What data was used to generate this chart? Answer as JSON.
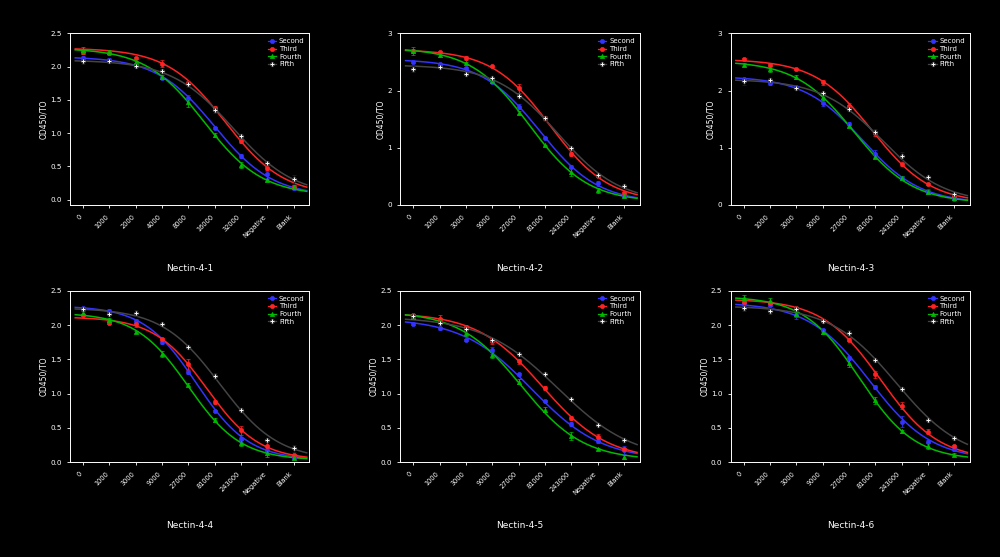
{
  "background": "#000000",
  "text_color": "#ffffff",
  "series": [
    {
      "name": "Second",
      "color": "#3333ff",
      "marker": "o",
      "mfc": "#3333ff"
    },
    {
      "name": "Third",
      "color": "#ff2222",
      "marker": "o",
      "mfc": "#ff2222"
    },
    {
      "name": "Fourth",
      "color": "#00bb00",
      "marker": "^",
      "mfc": "#00bb00"
    },
    {
      "name": "Fifth",
      "color": "#222222",
      "marker": "P",
      "mfc": "#ffffff",
      "lc": "#444444"
    }
  ],
  "subplots": [
    {
      "title": "Nectin-4-1",
      "ylabel": "OD450/TO",
      "ylim": [
        -0.08,
        2.5
      ],
      "yticks": [
        0.0,
        0.5,
        1.0,
        1.5,
        2.0,
        2.5
      ],
      "xtick_labels": [
        "0",
        "1000",
        "2000",
        "4000",
        "8000",
        "16000",
        "32000",
        "Negative",
        "Blank"
      ],
      "inflections": [
        5.0,
        5.4,
        4.6,
        5.7
      ],
      "tops": [
        2.15,
        2.28,
        2.28,
        2.1
      ],
      "bottoms": [
        0.05,
        0.06,
        0.06,
        0.05
      ],
      "slopes": [
        0.9,
        0.9,
        0.9,
        0.85
      ]
    },
    {
      "title": "Nectin-4-2",
      "ylabel": "OD450/TO",
      "ylim": [
        0,
        3.0
      ],
      "yticks": [
        0,
        1,
        2,
        3
      ],
      "xtick_labels": [
        "0",
        "1000",
        "3000",
        "9000",
        "27000",
        "81000",
        "243000",
        "Negative",
        "Blank"
      ],
      "inflections": [
        4.8,
        5.2,
        4.4,
        5.5
      ],
      "tops": [
        2.55,
        2.72,
        2.75,
        2.45
      ],
      "bottoms": [
        0.04,
        0.05,
        0.05,
        0.04
      ],
      "slopes": [
        0.9,
        0.9,
        0.9,
        0.85
      ]
    },
    {
      "title": "Nectin-4-3",
      "ylabel": "OD450/TO",
      "ylim": [
        0,
        3.0
      ],
      "yticks": [
        0,
        1,
        2,
        3
      ],
      "xtick_labels": [
        "0",
        "1000",
        "3000",
        "9000",
        "27000",
        "81000",
        "243000",
        "Negative",
        "Blank"
      ],
      "inflections": [
        4.5,
        4.9,
        4.2,
        5.3
      ],
      "tops": [
        2.25,
        2.55,
        2.52,
        2.2
      ],
      "bottoms": [
        0.03,
        0.03,
        0.03,
        0.03
      ],
      "slopes": [
        0.9,
        0.9,
        0.9,
        0.85
      ]
    },
    {
      "title": "Nectin-4-4",
      "ylabel": "OD450/TO",
      "ylim": [
        0.0,
        2.5
      ],
      "yticks": [
        0.0,
        0.5,
        1.0,
        1.5,
        2.0,
        2.5
      ],
      "xtick_labels": [
        "0",
        "1000",
        "3000",
        "9000",
        "27000",
        "81000",
        "243000",
        "Negative",
        "Blank"
      ],
      "inflections": [
        4.3,
        4.7,
        4.0,
        5.2
      ],
      "tops": [
        2.28,
        2.12,
        2.18,
        2.25
      ],
      "bottoms": [
        0.03,
        0.03,
        0.03,
        0.03
      ],
      "slopes": [
        1.0,
        1.0,
        1.0,
        0.9
      ]
    },
    {
      "title": "Nectin-4-5",
      "ylabel": "OD450/TO",
      "ylim": [
        0.0,
        2.5
      ],
      "yticks": [
        0.0,
        0.5,
        1.0,
        1.5,
        2.0,
        2.5
      ],
      "xtick_labels": [
        "0",
        "1000",
        "3000",
        "9000",
        "27000",
        "81000",
        "243000",
        "Negative",
        "Blank"
      ],
      "inflections": [
        4.5,
        4.9,
        4.1,
        5.5
      ],
      "tops": [
        2.1,
        2.18,
        2.2,
        2.12
      ],
      "bottoms": [
        0.03,
        0.03,
        0.03,
        0.03
      ],
      "slopes": [
        0.75,
        0.8,
        0.85,
        0.7
      ]
    },
    {
      "title": "Nectin-4-6",
      "ylabel": "OD450/TO",
      "ylim": [
        0.0,
        2.5
      ],
      "yticks": [
        0.0,
        0.5,
        1.0,
        1.5,
        2.0,
        2.5
      ],
      "xtick_labels": [
        "0",
        "1000",
        "3000",
        "9000",
        "27000",
        "81000",
        "243000",
        "Negative",
        "Blank"
      ],
      "inflections": [
        4.8,
        5.2,
        4.4,
        5.8
      ],
      "tops": [
        2.33,
        2.38,
        2.42,
        2.28
      ],
      "bottoms": [
        0.03,
        0.03,
        0.03,
        0.03
      ],
      "slopes": [
        0.85,
        0.9,
        0.95,
        0.8
      ]
    }
  ]
}
